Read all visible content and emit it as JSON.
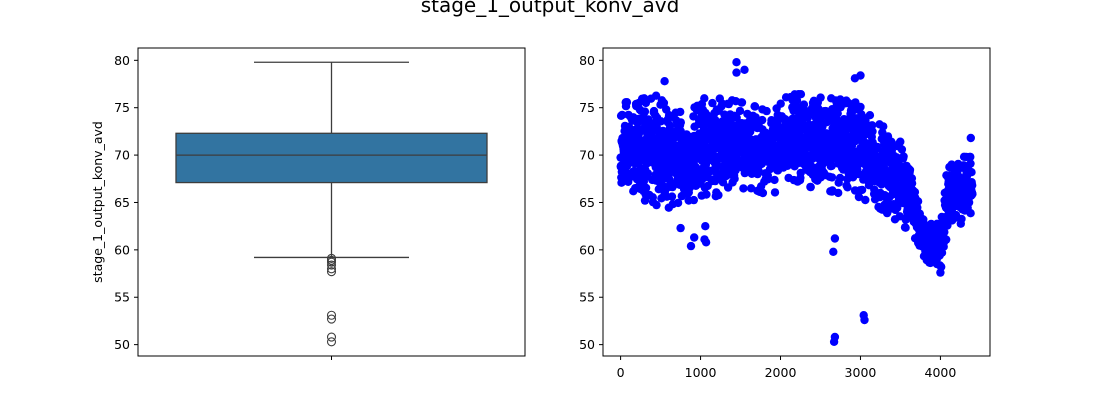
{
  "figure": {
    "title": "stage_1_output_konv_avd"
  },
  "colors": {
    "box_fill": "#3274a1",
    "box_line": "#3d3d3d",
    "scatter": "#0000ff"
  },
  "chart_data": [
    {
      "type": "box",
      "ylabel": "stage_1_output_konv_avd",
      "xlabel": "",
      "ylim": [
        48.8,
        81.3
      ],
      "yticks": [
        50,
        55,
        60,
        65,
        70,
        75,
        80
      ],
      "box": {
        "q1": 67.1,
        "median": 70.0,
        "q3": 72.3,
        "whisker_low": 59.2,
        "whisker_high": 79.8
      },
      "outliers": [
        59.1,
        58.9,
        58.7,
        58.4,
        58.0,
        57.7,
        53.1,
        52.7,
        50.8,
        50.3
      ]
    },
    {
      "type": "scatter",
      "xlim": [
        -220,
        4620
      ],
      "ylim": [
        48.8,
        81.3
      ],
      "xticks": [
        0,
        1000,
        2000,
        3000,
        4000
      ],
      "yticks": [
        50,
        55,
        60,
        65,
        70,
        75,
        80
      ],
      "trend": [
        {
          "x": 0,
          "center": 70.5,
          "spread": 4.5
        },
        {
          "x": 300,
          "center": 70.5,
          "spread": 5.0
        },
        {
          "x": 600,
          "center": 70.5,
          "spread": 5.5
        },
        {
          "x": 800,
          "center": 69.5,
          "spread": 4.5
        },
        {
          "x": 1000,
          "center": 70.5,
          "spread": 5.0
        },
        {
          "x": 1300,
          "center": 71.0,
          "spread": 4.5
        },
        {
          "x": 1600,
          "center": 71.0,
          "spread": 4.0
        },
        {
          "x": 1900,
          "center": 70.0,
          "spread": 4.0
        },
        {
          "x": 2100,
          "center": 72.0,
          "spread": 4.0
        },
        {
          "x": 2400,
          "center": 71.5,
          "spread": 4.5
        },
        {
          "x": 2700,
          "center": 71.0,
          "spread": 4.5
        },
        {
          "x": 3000,
          "center": 70.5,
          "spread": 4.5
        },
        {
          "x": 3300,
          "center": 68.5,
          "spread": 4.0
        },
        {
          "x": 3600,
          "center": 66.5,
          "spread": 4.0
        },
        {
          "x": 3800,
          "center": 61.0,
          "spread": 2.0
        },
        {
          "x": 4000,
          "center": 60.5,
          "spread": 2.0
        },
        {
          "x": 4100,
          "center": 66.0,
          "spread": 3.5
        },
        {
          "x": 4400,
          "center": 66.5,
          "spread": 3.0
        }
      ],
      "notable_points": [
        {
          "x": 1450,
          "y": 79.8
        },
        {
          "x": 1450,
          "y": 78.7
        },
        {
          "x": 1550,
          "y": 79.0
        },
        {
          "x": 550,
          "y": 77.8
        },
        {
          "x": 3000,
          "y": 78.4
        },
        {
          "x": 2930,
          "y": 78.1
        },
        {
          "x": 880,
          "y": 60.4
        },
        {
          "x": 920,
          "y": 61.3
        },
        {
          "x": 1050,
          "y": 61.1
        },
        {
          "x": 1060,
          "y": 62.5
        },
        {
          "x": 1070,
          "y": 60.8
        },
        {
          "x": 750,
          "y": 62.3
        },
        {
          "x": 2680,
          "y": 61.2
        },
        {
          "x": 2660,
          "y": 59.8
        },
        {
          "x": 2680,
          "y": 50.8
        },
        {
          "x": 2670,
          "y": 50.3
        },
        {
          "x": 3040,
          "y": 53.1
        },
        {
          "x": 3050,
          "y": 52.6
        },
        {
          "x": 4380,
          "y": 71.8
        },
        {
          "x": 4000,
          "y": 57.6
        },
        {
          "x": 4010,
          "y": 58.2
        }
      ]
    }
  ]
}
